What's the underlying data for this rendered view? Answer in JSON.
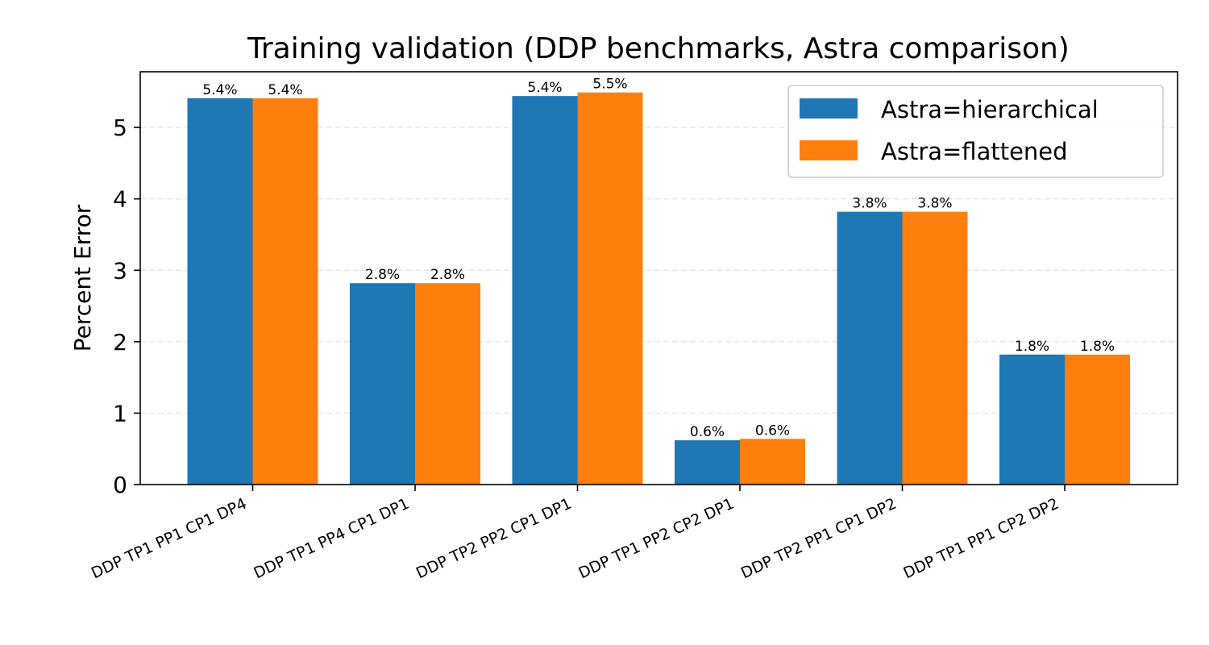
{
  "chart_data": {
    "type": "bar",
    "title": "Training validation (DDP benchmarks, Astra comparison)",
    "xlabel": "",
    "ylabel": "Percent Error",
    "ylim": [
      0,
      5.78
    ],
    "yticks": [
      "0",
      "1",
      "2",
      "3",
      "4",
      "5"
    ],
    "grid": "horizontal-dashed",
    "legend_position": "top-right",
    "categories": [
      "DDP TP1 PP1 CP1 DP4",
      "DDP TP1 PP4 CP1 DP1",
      "DDP TP2 PP2 CP1 DP1",
      "DDP TP1 PP2 CP2 DP1",
      "DDP TP2 PP1 CP1 DP2",
      "DDP TP1 PP1 CP2 DP2"
    ],
    "series": [
      {
        "name": "Astra=hierarchical",
        "color": "#1f77b4",
        "values": [
          5.41,
          2.82,
          5.44,
          0.62,
          3.82,
          1.82
        ],
        "labels": [
          "5.4%",
          "2.8%",
          "5.4%",
          "0.6%",
          "3.8%",
          "1.8%"
        ]
      },
      {
        "name": "Astra=flattened",
        "color": "#ff7f0e",
        "values": [
          5.41,
          2.82,
          5.49,
          0.64,
          3.82,
          1.82
        ],
        "labels": [
          "5.4%",
          "2.8%",
          "5.5%",
          "0.6%",
          "3.8%",
          "1.8%"
        ]
      }
    ]
  }
}
